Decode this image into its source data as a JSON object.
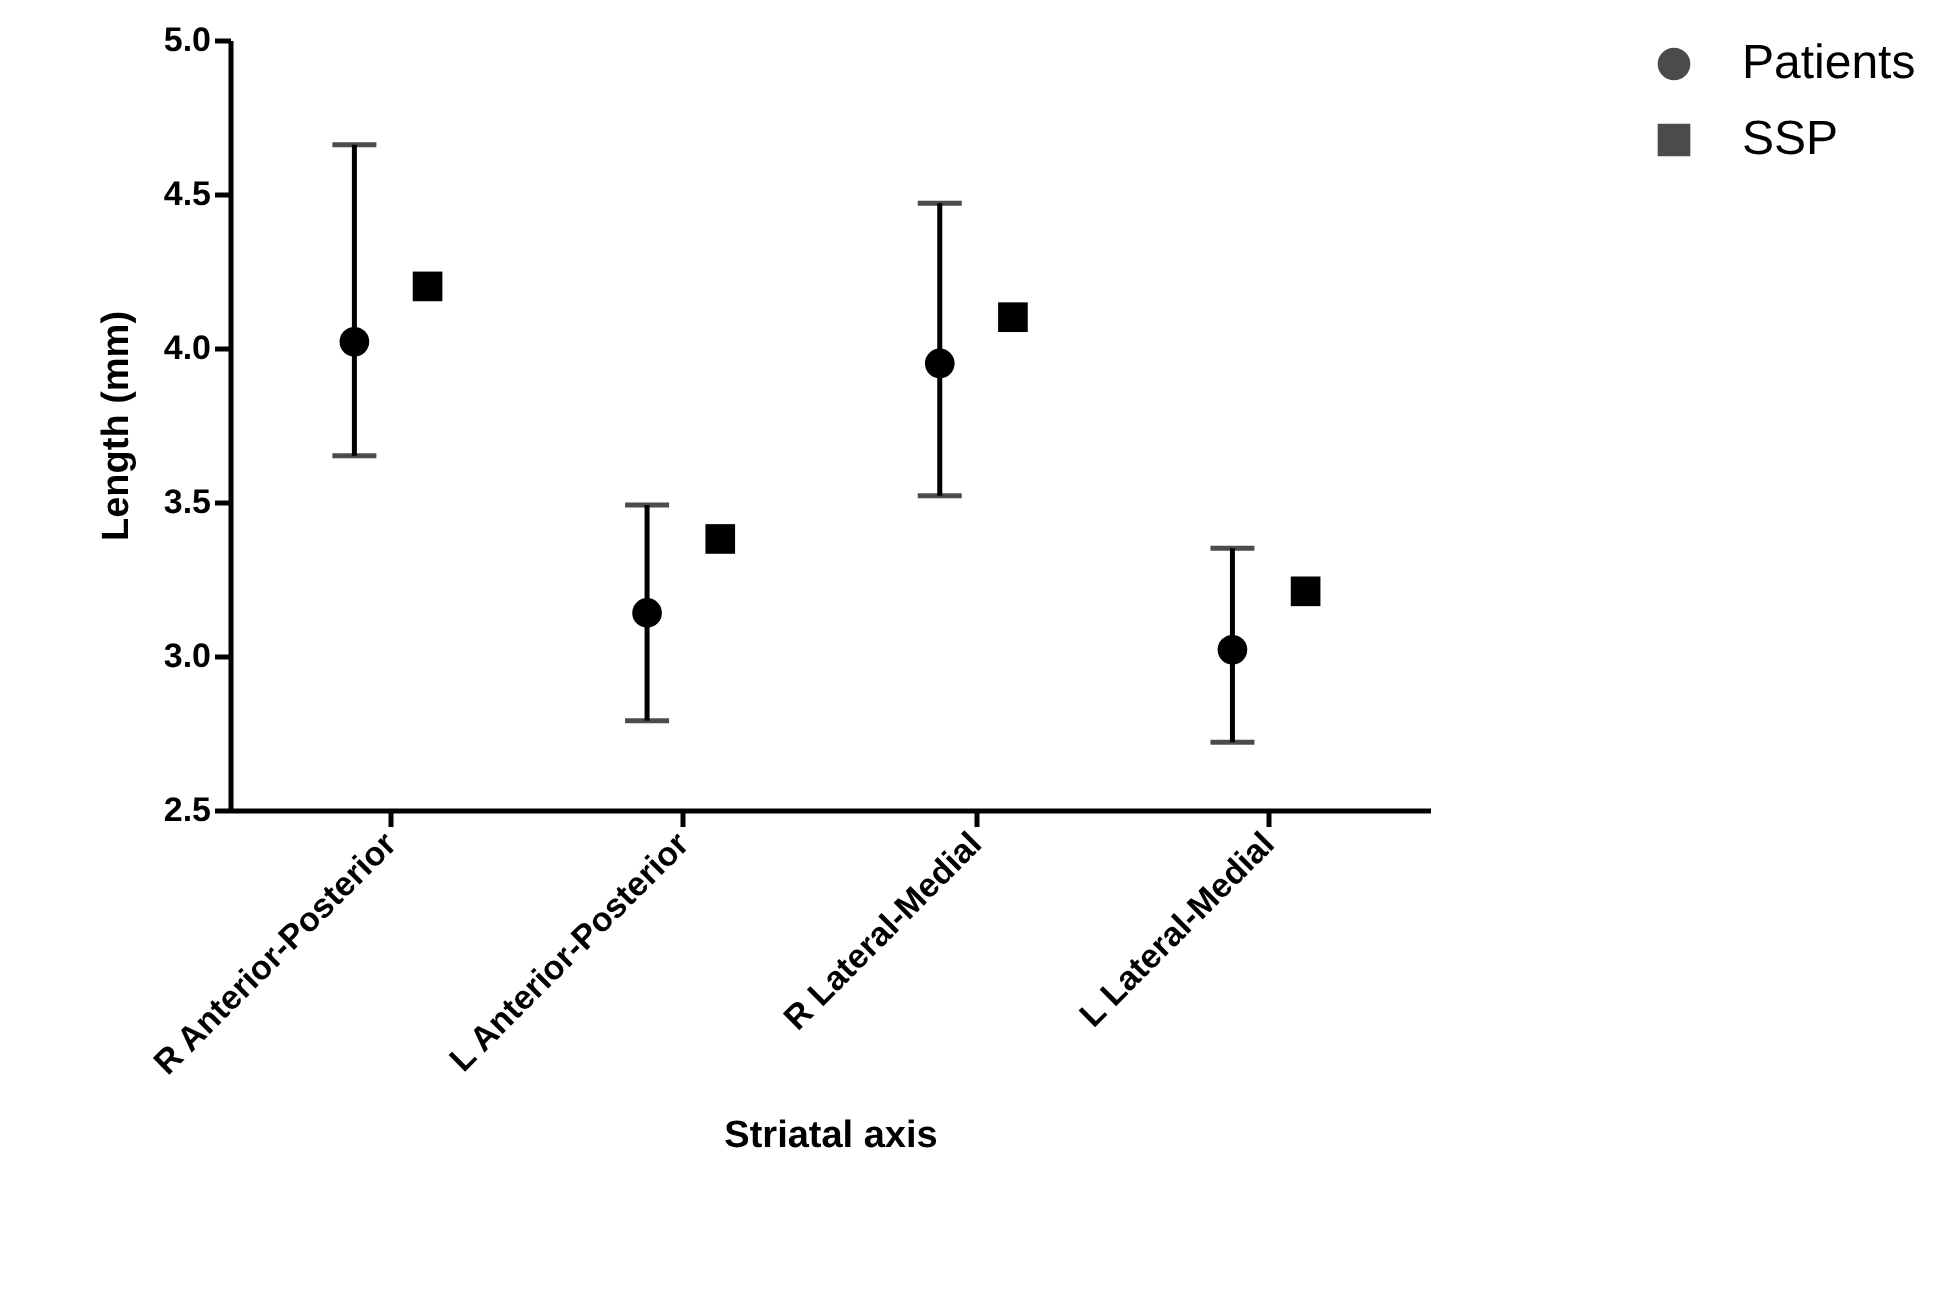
{
  "chart_data": {
    "type": "scatter",
    "xlabel": "Striatal axis",
    "ylabel": "Length (mm)",
    "categories": [
      "R Anterior-Posterior",
      "L Anterior-Posterior",
      "R Lateral-Medial",
      "L Lateral-Medial"
    ],
    "series": [
      {
        "name": "Patients",
        "color": "#000000",
        "marker": "circle",
        "values": [
          4.02,
          3.14,
          3.95,
          3.02
        ],
        "errors": [
          [
            3.65,
            4.66
          ],
          [
            2.79,
            3.49
          ],
          [
            3.52,
            4.47
          ],
          [
            2.72,
            3.35
          ]
        ]
      },
      {
        "name": "SSP",
        "color": "#000000",
        "marker": "square",
        "values": [
          4.2,
          3.38,
          4.1,
          3.21
        ]
      }
    ],
    "ylim": [
      2.5,
      5.0
    ],
    "yticks": [
      2.5,
      {
        "value": 3,
        "label": "3.0"
      },
      3.5,
      {
        "value": 4,
        "label": "4.0"
      },
      4.5,
      {
        "value": 5,
        "label": "5.0"
      }
    ],
    "grid": false,
    "legend": "top right"
  }
}
